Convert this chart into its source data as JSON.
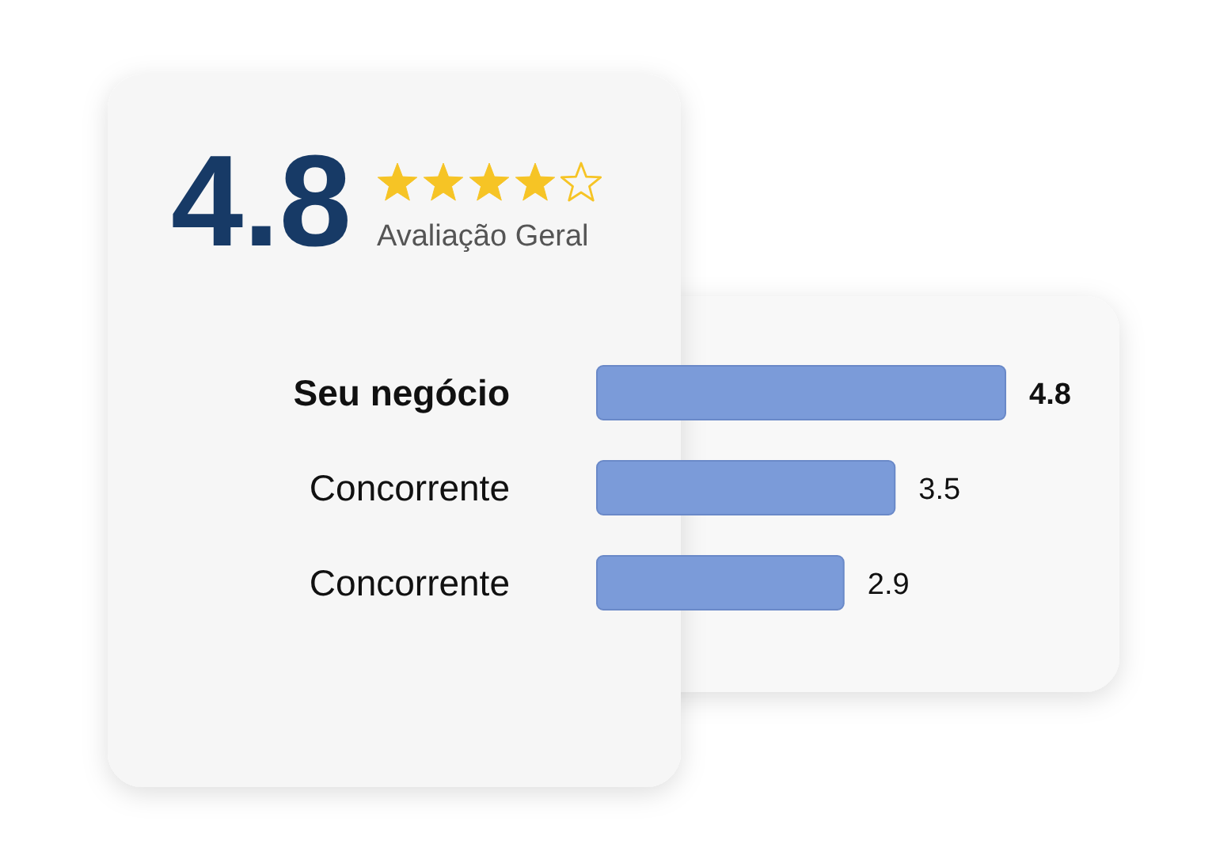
{
  "chart_data": {
    "type": "bar",
    "orientation": "horizontal",
    "title": "4.8",
    "subtitle": "Avaliação Geral",
    "categories": [
      "Seu negócio",
      "Concorrente",
      "Concorrente"
    ],
    "values": [
      4.8,
      3.5,
      2.9
    ],
    "color": "#7b9bd9",
    "data_labels": true,
    "tick_labels": "y"
  }
}
